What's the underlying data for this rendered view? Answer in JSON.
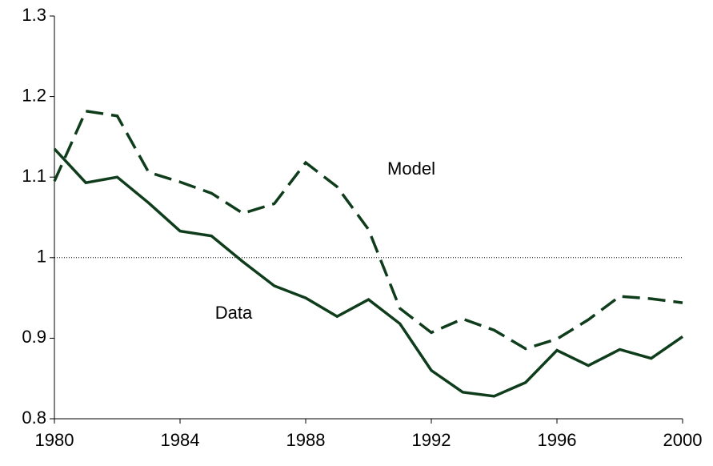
{
  "chart_data": {
    "type": "line",
    "x": [
      1980,
      1981,
      1982,
      1983,
      1984,
      1985,
      1986,
      1987,
      1988,
      1989,
      1990,
      1991,
      1992,
      1993,
      1994,
      1995,
      1996,
      1997,
      1998,
      1999,
      2000
    ],
    "series": [
      {
        "name": "Data",
        "color": "#0f3d1c",
        "dash": "solid",
        "values": [
          1.135,
          1.093,
          1.1,
          1.068,
          1.033,
          1.027,
          0.995,
          0.965,
          0.95,
          0.927,
          0.948,
          0.918,
          0.86,
          0.833,
          0.828,
          0.845,
          0.885,
          0.866,
          0.886,
          0.875,
          0.902
        ]
      },
      {
        "name": "Model",
        "color": "#0f3d1c",
        "dash": "dashed",
        "values": [
          1.095,
          1.182,
          1.176,
          1.106,
          1.094,
          1.08,
          1.055,
          1.067,
          1.118,
          1.088,
          1.035,
          0.937,
          0.907,
          0.924,
          0.91,
          0.887,
          0.899,
          0.923,
          0.952,
          0.949,
          0.944
        ]
      }
    ],
    "xlim": [
      1980,
      2000
    ],
    "xticks": [
      1980,
      1984,
      1988,
      1992,
      1996,
      2000
    ],
    "ylim": [
      0.8,
      1.3
    ],
    "yticks": [
      0.8,
      0.9,
      1,
      1.1,
      1.2,
      1.3
    ],
    "reference_line": 1
  }
}
